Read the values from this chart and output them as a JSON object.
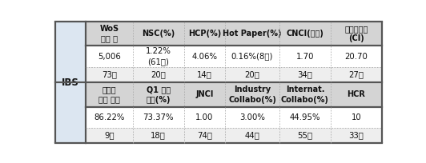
{
  "ibs_label": "IBS",
  "header_row1": [
    "WoS\n논문 수",
    "NSC(%)",
    "HCP(%)",
    "Hot Paper(%)",
    "CNCI(평균)",
    "인용영향력\n(CI)"
  ],
  "data_row1": [
    "5,006",
    "1.22%\n(61편)",
    "4.06%",
    "0.16%(8편)",
    "1.70",
    "20.70"
  ],
  "rank_row1": [
    "73위",
    "20위",
    "14위",
    "20위",
    "34위",
    "27위"
  ],
  "header_row2": [
    "피인용\n논문 비율",
    "Q1 저널\n비율(%)",
    "JNCI",
    "Industry\nCollabo(%)",
    "Internat.\nCollabo(%)",
    "HCR"
  ],
  "data_row2": [
    "86.22%",
    "73.37%",
    "1.00",
    "3.00%",
    "44.95%",
    "10"
  ],
  "rank_row2": [
    "9위",
    "18위",
    "74위",
    "44위",
    "55위",
    "33위"
  ],
  "bg_header": "#d4d4d4",
  "bg_header2": "#c8d4e8",
  "bg_white": "#ffffff",
  "bg_light": "#eeeeee",
  "border_color_thick": "#555555",
  "border_color_thin": "#aaaaaa",
  "text_color": "#111111",
  "ibs_bg": "#dce6f1",
  "figsize": [
    5.32,
    2.04
  ],
  "dpi": 100
}
